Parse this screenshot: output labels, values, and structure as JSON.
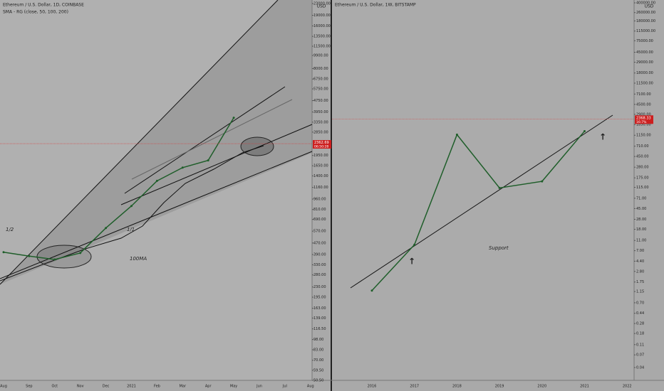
{
  "panels": [
    {
      "title": "Ethereum / U.S. Dollar, 1D, COINBASE",
      "indicator": "SMA - RG (close, 50, 100, 200)",
      "currency": "USD",
      "scale": "log",
      "color": "#1f5e2a",
      "ylim": [
        50.5,
        23000
      ],
      "yticks": [
        {
          "value": 23000,
          "label": "23000.00"
        },
        {
          "value": 19000,
          "label": "19000.00"
        },
        {
          "value": 16000,
          "label": "16000.00"
        },
        {
          "value": 13500,
          "label": "13500.00"
        },
        {
          "value": 11500,
          "label": "11500.00"
        },
        {
          "value": 9900,
          "label": "9900.00"
        },
        {
          "value": 8000,
          "label": "8000.00"
        },
        {
          "value": 6750,
          "label": "6750.00"
        },
        {
          "value": 5750,
          "label": "5750.00"
        },
        {
          "value": 4750,
          "label": "4750.00"
        },
        {
          "value": 3950,
          "label": "3950.00"
        },
        {
          "value": 3350,
          "label": "3350.00"
        },
        {
          "value": 2850,
          "label": "2850.00"
        },
        {
          "value": 1950,
          "label": "1950.00"
        },
        {
          "value": 1650,
          "label": "1650.00"
        },
        {
          "value": 1400,
          "label": "1400.00"
        },
        {
          "value": 1160,
          "label": "1160.00"
        },
        {
          "value": 960,
          "label": "960.00"
        },
        {
          "value": 810,
          "label": "810.00"
        },
        {
          "value": 690,
          "label": "690.00"
        },
        {
          "value": 570,
          "label": "570.00"
        },
        {
          "value": 470,
          "label": "470.00"
        },
        {
          "value": 390,
          "label": "390.00"
        },
        {
          "value": 330,
          "label": "330.00"
        },
        {
          "value": 280,
          "label": "280.00"
        },
        {
          "value": 230,
          "label": "230.00"
        },
        {
          "value": 195,
          "label": "195.00"
        },
        {
          "value": 163,
          "label": "163.00"
        },
        {
          "value": 139,
          "label": "139.00"
        },
        {
          "value": 116.5,
          "label": "116.50"
        },
        {
          "value": 98,
          "label": "98.00"
        },
        {
          "value": 83,
          "label": "83.00"
        },
        {
          "value": 70,
          "label": "70.00"
        },
        {
          "value": 59.5,
          "label": "59.50"
        },
        {
          "value": 50.5,
          "label": "50.50"
        }
      ],
      "categories": [
        "Aug",
        "Sep",
        "Oct",
        "Nov",
        "Dec",
        "2021",
        "Feb",
        "Mar",
        "Apr",
        "May",
        "Jun",
        "Jul",
        "Aug"
      ],
      "values": [
        405,
        380,
        360,
        400,
        600,
        858,
        1290,
        1600,
        1800,
        3600,
        null,
        null,
        null
      ],
      "last_price": {
        "value": 2362.69,
        "label": "2362.69",
        "countdown": "06:50:28"
      },
      "annotations": [
        "1/2",
        "1/1",
        "100MA"
      ]
    },
    {
      "title": "Ethereum / U.S. Dollar, 1W, BITSTAMP",
      "currency": "USD",
      "scale": "log",
      "color": "#1f5e2a",
      "ylim": [
        0.04,
        400000
      ],
      "yticks": [
        {
          "value": 400000,
          "label": "400000.00"
        },
        {
          "value": 260000,
          "label": "260000.00"
        },
        {
          "value": 180000,
          "label": "180000.00"
        },
        {
          "value": 115000,
          "label": "115000.00"
        },
        {
          "value": 75000,
          "label": "75000.00"
        },
        {
          "value": 45000,
          "label": "45000.00"
        },
        {
          "value": 29000,
          "label": "29000.00"
        },
        {
          "value": 18000,
          "label": "18000.00"
        },
        {
          "value": 11500,
          "label": "11500.00"
        },
        {
          "value": 7100,
          "label": "7100.00"
        },
        {
          "value": 4500,
          "label": "4500.00"
        },
        {
          "value": 2900,
          "label": "2900.00"
        },
        {
          "value": 1850,
          "label": "1850.00"
        },
        {
          "value": 1150,
          "label": "1150.00"
        },
        {
          "value": 710,
          "label": "710.00"
        },
        {
          "value": 450,
          "label": "450.00"
        },
        {
          "value": 280,
          "label": "280.00"
        },
        {
          "value": 175,
          "label": "175.00"
        },
        {
          "value": 115,
          "label": "115.00"
        },
        {
          "value": 71,
          "label": "71.00"
        },
        {
          "value": 45,
          "label": "45.00"
        },
        {
          "value": 28,
          "label": "28.00"
        },
        {
          "value": 18,
          "label": "18.00"
        },
        {
          "value": 11,
          "label": "11.00"
        },
        {
          "value": 7,
          "label": "7.00"
        },
        {
          "value": 4.4,
          "label": "4.40"
        },
        {
          "value": 2.8,
          "label": "2.80"
        },
        {
          "value": 1.75,
          "label": "1.75"
        },
        {
          "value": 1.15,
          "label": "1.15"
        },
        {
          "value": 0.7,
          "label": "0.70"
        },
        {
          "value": 0.44,
          "label": "0.44"
        },
        {
          "value": 0.28,
          "label": "0.28"
        },
        {
          "value": 0.18,
          "label": "0.18"
        },
        {
          "value": 0.11,
          "label": "0.11"
        },
        {
          "value": 0.07,
          "label": "0.07"
        },
        {
          "value": 0.04,
          "label": "0.04"
        }
      ],
      "categories": [
        "2016",
        "2017",
        "2018",
        "2019",
        "2020",
        "2021",
        "2022"
      ],
      "values": [
        1.2,
        9.1,
        1180,
        112,
        150,
        1380,
        null
      ],
      "last_price": {
        "value": 2368.33,
        "label": "2368.33",
        "countdown": "16:7%"
      },
      "annotations": [
        "Support"
      ]
    }
  ]
}
